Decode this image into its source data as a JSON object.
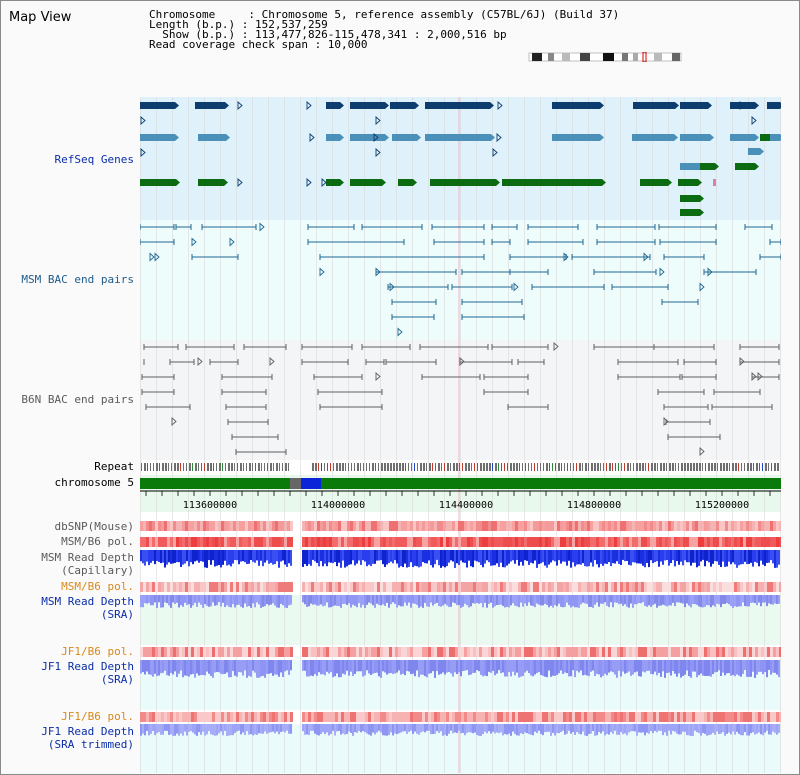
{
  "title": "Map View",
  "info": {
    "line1": "Chromosome     : Chromosome 5, reference assembly (C57BL/6J) (Build 37)",
    "line2": "Length (b.p.) : 152,537,259",
    "line3": "  Show (b.p.) : 113,477,826-115,478,341 : 2,000,516 bp",
    "line4": "Read coverage check span : 10,000"
  },
  "tracks": {
    "refseq": "RefSeq Genes",
    "msm_bac": "MSM BAC end pairs",
    "b6n_bac": "B6N BAC end pairs",
    "repeat": "Repeat",
    "chromosome": "chromosome 5",
    "dbsnp": "dbSNP(Mouse)",
    "msm_b6_pol_1": "MSM/B6 pol.",
    "msm_depth_cap_1": "MSM Read Depth",
    "msm_depth_cap_2": "(Capillary)",
    "msm_b6_pol_2": "MSM/B6 pol.",
    "msm_depth_sra_1": "MSM Read Depth",
    "msm_depth_sra_2": "(SRA)",
    "jf1_b6_pol_1": "JF1/B6 pol.",
    "jf1_depth_sra_1": "JF1 Read Depth",
    "jf1_depth_sra_2": "(SRA)",
    "jf1_b6_pol_2": "JF1/B6 pol.",
    "jf1_depth_trim_1": "JF1 Read Depth",
    "jf1_depth_trim_2": "(SRA trimmed)"
  },
  "axis_ticks": [
    "113600000",
    "114000000",
    "114400000",
    "114800000",
    "115200000"
  ],
  "colors": {
    "refseq_bg": "#dff1fb",
    "msm_bg": "#eefcfc",
    "b6n_bg": "#f4f5f7",
    "coverage_bg": "#e9f8ec",
    "dark_gene": "#0d3c6e",
    "mid_gene": "#4a90b8",
    "green_gene": "#0b6b10",
    "chromosome": "#0a7a0a"
  }
}
